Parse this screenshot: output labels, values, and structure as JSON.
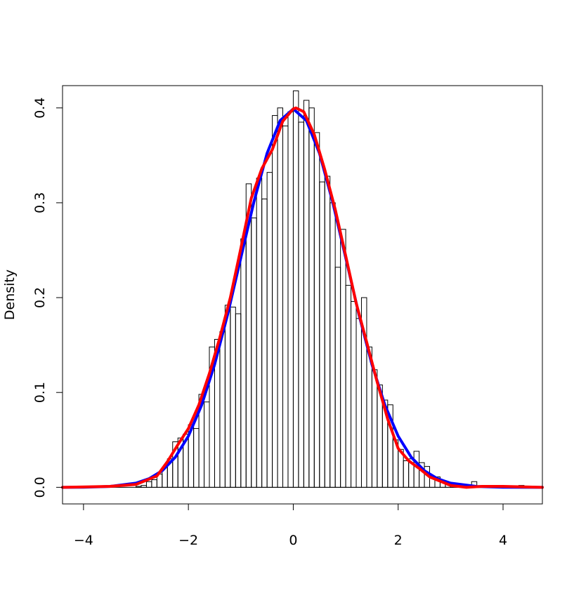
{
  "chart_data": {
    "type": "bar",
    "title": "",
    "xlabel": "",
    "ylabel": "Density",
    "xlim": [
      -4.4,
      4.75
    ],
    "ylim": [
      -0.0175,
      0.4235
    ],
    "x_ticks": [
      -4,
      -2,
      0,
      2,
      4
    ],
    "x_tick_labels": [
      "−4",
      "−2",
      "0",
      "2",
      "4"
    ],
    "y_ticks": [
      0.0,
      0.1,
      0.2,
      0.3,
      0.4
    ],
    "y_tick_labels": [
      "0.0",
      "0.1",
      "0.2",
      "0.3",
      "0.4"
    ],
    "grid": false,
    "histogram": {
      "bin_width": 0.1,
      "bins": [
        {
          "x0": -4.0,
          "x1": -3.9,
          "density": 0.001
        },
        {
          "x0": -3.0,
          "x1": -2.9,
          "density": 0.001
        },
        {
          "x0": -2.9,
          "x1": -2.8,
          "density": 0.002
        },
        {
          "x0": -2.8,
          "x1": -2.7,
          "density": 0.006
        },
        {
          "x0": -2.7,
          "x1": -2.6,
          "density": 0.008
        },
        {
          "x0": -2.6,
          "x1": -2.5,
          "density": 0.014
        },
        {
          "x0": -2.5,
          "x1": -2.4,
          "density": 0.021
        },
        {
          "x0": -2.4,
          "x1": -2.3,
          "density": 0.03
        },
        {
          "x0": -2.3,
          "x1": -2.2,
          "density": 0.048
        },
        {
          "x0": -2.2,
          "x1": -2.1,
          "density": 0.052
        },
        {
          "x0": -2.1,
          "x1": -2.0,
          "density": 0.056
        },
        {
          "x0": -2.0,
          "x1": -1.9,
          "density": 0.066
        },
        {
          "x0": -1.9,
          "x1": -1.8,
          "density": 0.062
        },
        {
          "x0": -1.8,
          "x1": -1.7,
          "density": 0.098
        },
        {
          "x0": -1.7,
          "x1": -1.6,
          "density": 0.09
        },
        {
          "x0": -1.6,
          "x1": -1.5,
          "density": 0.148
        },
        {
          "x0": -1.5,
          "x1": -1.4,
          "density": 0.156
        },
        {
          "x0": -1.4,
          "x1": -1.3,
          "density": 0.164
        },
        {
          "x0": -1.3,
          "x1": -1.2,
          "density": 0.192
        },
        {
          "x0": -1.2,
          "x1": -1.1,
          "density": 0.19
        },
        {
          "x0": -1.1,
          "x1": -1.0,
          "density": 0.183
        },
        {
          "x0": -1.0,
          "x1": -0.9,
          "density": 0.262
        },
        {
          "x0": -0.9,
          "x1": -0.8,
          "density": 0.32
        },
        {
          "x0": -0.8,
          "x1": -0.7,
          "density": 0.284
        },
        {
          "x0": -0.7,
          "x1": -0.6,
          "density": 0.326
        },
        {
          "x0": -0.6,
          "x1": -0.5,
          "density": 0.304
        },
        {
          "x0": -0.5,
          "x1": -0.4,
          "density": 0.332
        },
        {
          "x0": -0.4,
          "x1": -0.3,
          "density": 0.392
        },
        {
          "x0": -0.3,
          "x1": -0.2,
          "density": 0.4
        },
        {
          "x0": -0.2,
          "x1": -0.1,
          "density": 0.381
        },
        {
          "x0": -0.1,
          "x1": 0.0,
          "density": 0.396
        },
        {
          "x0": 0.0,
          "x1": 0.1,
          "density": 0.418
        },
        {
          "x0": 0.1,
          "x1": 0.2,
          "density": 0.385
        },
        {
          "x0": 0.2,
          "x1": 0.3,
          "density": 0.408
        },
        {
          "x0": 0.3,
          "x1": 0.4,
          "density": 0.4
        },
        {
          "x0": 0.4,
          "x1": 0.5,
          "density": 0.374
        },
        {
          "x0": 0.5,
          "x1": 0.6,
          "density": 0.322
        },
        {
          "x0": 0.6,
          "x1": 0.7,
          "density": 0.328
        },
        {
          "x0": 0.7,
          "x1": 0.8,
          "density": 0.3
        },
        {
          "x0": 0.8,
          "x1": 0.9,
          "density": 0.232
        },
        {
          "x0": 0.9,
          "x1": 1.0,
          "density": 0.272
        },
        {
          "x0": 1.0,
          "x1": 1.1,
          "density": 0.213
        },
        {
          "x0": 1.1,
          "x1": 1.2,
          "density": 0.196
        },
        {
          "x0": 1.2,
          "x1": 1.3,
          "density": 0.178
        },
        {
          "x0": 1.3,
          "x1": 1.4,
          "density": 0.2
        },
        {
          "x0": 1.4,
          "x1": 1.5,
          "density": 0.148
        },
        {
          "x0": 1.5,
          "x1": 1.6,
          "density": 0.124
        },
        {
          "x0": 1.6,
          "x1": 1.7,
          "density": 0.108
        },
        {
          "x0": 1.7,
          "x1": 1.8,
          "density": 0.092
        },
        {
          "x0": 1.8,
          "x1": 1.9,
          "density": 0.087
        },
        {
          "x0": 1.9,
          "x1": 2.0,
          "density": 0.05
        },
        {
          "x0": 2.0,
          "x1": 2.1,
          "density": 0.04
        },
        {
          "x0": 2.1,
          "x1": 2.2,
          "density": 0.028
        },
        {
          "x0": 2.2,
          "x1": 2.3,
          "density": 0.03
        },
        {
          "x0": 2.3,
          "x1": 2.4,
          "density": 0.038
        },
        {
          "x0": 2.4,
          "x1": 2.5,
          "density": 0.026
        },
        {
          "x0": 2.5,
          "x1": 2.6,
          "density": 0.022
        },
        {
          "x0": 2.6,
          "x1": 2.7,
          "density": 0.011
        },
        {
          "x0": 2.7,
          "x1": 2.8,
          "density": 0.011
        },
        {
          "x0": 2.8,
          "x1": 2.9,
          "density": 0.007
        },
        {
          "x0": 2.9,
          "x1": 3.0,
          "density": 0.004
        },
        {
          "x0": 3.0,
          "x1": 3.1,
          "density": 0.002
        },
        {
          "x0": 3.1,
          "x1": 3.2,
          "density": 0.001
        },
        {
          "x0": 3.4,
          "x1": 3.5,
          "density": 0.006
        },
        {
          "x0": 4.3,
          "x1": 4.4,
          "density": 0.002
        }
      ]
    },
    "series": [
      {
        "type": "line",
        "color": "#0000ff",
        "x": [
          -4.4,
          -4.0,
          -3.5,
          -3.0,
          -2.75,
          -2.5,
          -2.25,
          -2.0,
          -1.75,
          -1.5,
          -1.25,
          -1.0,
          -0.75,
          -0.5,
          -0.25,
          0.0,
          0.25,
          0.5,
          0.75,
          1.0,
          1.25,
          1.5,
          1.75,
          2.0,
          2.25,
          2.5,
          2.75,
          3.0,
          3.5,
          4.0,
          4.75
        ],
        "y": [
          0.0,
          0.0001,
          0.0009,
          0.0044,
          0.0091,
          0.0175,
          0.0317,
          0.054,
          0.0863,
          0.1295,
          0.1826,
          0.242,
          0.3011,
          0.3521,
          0.3867,
          0.3989,
          0.3867,
          0.3521,
          0.3011,
          0.242,
          0.1826,
          0.1295,
          0.0863,
          0.054,
          0.0317,
          0.0175,
          0.0091,
          0.0044,
          0.0009,
          0.0001,
          0.0
        ]
      },
      {
        "type": "line",
        "color": "#ff0000",
        "x": [
          -4.4,
          -3.5,
          -3.0,
          -2.6,
          -2.4,
          -2.2,
          -2.0,
          -1.8,
          -1.6,
          -1.4,
          -1.2,
          -1.0,
          -0.8,
          -0.6,
          -0.4,
          -0.2,
          0.0,
          0.05,
          0.2,
          0.4,
          0.6,
          0.8,
          1.0,
          1.2,
          1.4,
          1.6,
          1.8,
          2.0,
          2.2,
          2.4,
          2.6,
          3.0,
          3.3,
          3.6,
          4.0,
          4.75
        ],
        "y": [
          0.0,
          0.001,
          0.003,
          0.012,
          0.027,
          0.045,
          0.062,
          0.087,
          0.12,
          0.158,
          0.2,
          0.252,
          0.305,
          0.336,
          0.356,
          0.386,
          0.399,
          0.4,
          0.396,
          0.372,
          0.335,
          0.293,
          0.244,
          0.194,
          0.153,
          0.111,
          0.072,
          0.041,
          0.028,
          0.02,
          0.011,
          0.002,
          0.0,
          0.001,
          0.001,
          0.0
        ]
      }
    ]
  }
}
